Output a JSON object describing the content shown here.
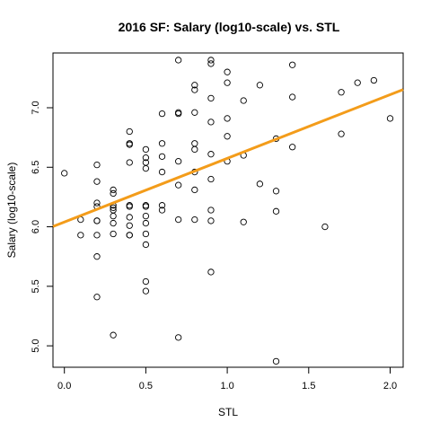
{
  "chart_data": {
    "type": "scatter",
    "title": "2016 SF: Salary (log10-scale) vs. STL",
    "xlabel": "STL",
    "ylabel": "Salary (log10-scale)",
    "xlim": [
      -0.07,
      2.08
    ],
    "ylim": [
      4.82,
      7.46
    ],
    "xticks": [
      0.0,
      0.5,
      1.0,
      1.5,
      2.0
    ],
    "xtick_labels": [
      "0.0",
      "0.5",
      "1.0",
      "1.5",
      "2.0"
    ],
    "yticks": [
      5.0,
      5.5,
      6.0,
      6.5,
      7.0
    ],
    "ytick_labels": [
      "5.0",
      "5.5",
      "6.0",
      "6.5",
      "7.0"
    ],
    "grid": false,
    "point_color": "#000000",
    "points": [
      [
        0.0,
        6.45
      ],
      [
        0.1,
        6.06
      ],
      [
        0.1,
        5.93
      ],
      [
        0.2,
        6.52
      ],
      [
        0.2,
        6.38
      ],
      [
        0.2,
        6.2
      ],
      [
        0.2,
        6.17
      ],
      [
        0.2,
        6.05
      ],
      [
        0.2,
        6.05
      ],
      [
        0.2,
        5.93
      ],
      [
        0.2,
        5.75
      ],
      [
        0.2,
        5.41
      ],
      [
        0.3,
        6.31
      ],
      [
        0.3,
        6.28
      ],
      [
        0.3,
        6.18
      ],
      [
        0.3,
        6.16
      ],
      [
        0.3,
        6.14
      ],
      [
        0.3,
        6.09
      ],
      [
        0.3,
        6.03
      ],
      [
        0.3,
        5.94
      ],
      [
        0.3,
        5.09
      ],
      [
        0.4,
        6.8
      ],
      [
        0.4,
        6.7
      ],
      [
        0.4,
        6.69
      ],
      [
        0.4,
        6.54
      ],
      [
        0.4,
        6.18
      ],
      [
        0.4,
        6.17
      ],
      [
        0.4,
        6.08
      ],
      [
        0.4,
        6.01
      ],
      [
        0.4,
        5.93
      ],
      [
        0.4,
        5.93
      ],
      [
        0.5,
        6.65
      ],
      [
        0.5,
        6.58
      ],
      [
        0.5,
        6.54
      ],
      [
        0.5,
        6.49
      ],
      [
        0.5,
        6.18
      ],
      [
        0.5,
        6.17
      ],
      [
        0.5,
        6.09
      ],
      [
        0.5,
        6.03
      ],
      [
        0.5,
        5.94
      ],
      [
        0.5,
        5.85
      ],
      [
        0.5,
        5.54
      ],
      [
        0.5,
        5.46
      ],
      [
        0.6,
        6.95
      ],
      [
        0.6,
        6.7
      ],
      [
        0.6,
        6.59
      ],
      [
        0.6,
        6.46
      ],
      [
        0.6,
        6.18
      ],
      [
        0.6,
        6.14
      ],
      [
        0.7,
        7.4
      ],
      [
        0.7,
        6.96
      ],
      [
        0.7,
        6.95
      ],
      [
        0.7,
        6.55
      ],
      [
        0.7,
        6.35
      ],
      [
        0.7,
        6.06
      ],
      [
        0.7,
        5.07
      ],
      [
        0.8,
        7.19
      ],
      [
        0.8,
        7.15
      ],
      [
        0.8,
        6.96
      ],
      [
        0.8,
        6.7
      ],
      [
        0.8,
        6.65
      ],
      [
        0.8,
        6.46
      ],
      [
        0.8,
        6.31
      ],
      [
        0.8,
        6.06
      ],
      [
        0.9,
        7.4
      ],
      [
        0.9,
        7.37
      ],
      [
        0.9,
        7.08
      ],
      [
        0.9,
        6.88
      ],
      [
        0.9,
        6.61
      ],
      [
        0.9,
        6.4
      ],
      [
        0.9,
        6.14
      ],
      [
        0.9,
        6.05
      ],
      [
        0.9,
        5.62
      ],
      [
        1.0,
        7.3
      ],
      [
        1.0,
        7.21
      ],
      [
        1.0,
        6.91
      ],
      [
        1.0,
        6.76
      ],
      [
        1.0,
        6.55
      ],
      [
        1.1,
        7.06
      ],
      [
        1.1,
        6.6
      ],
      [
        1.1,
        6.04
      ],
      [
        1.2,
        7.19
      ],
      [
        1.2,
        6.36
      ],
      [
        1.3,
        6.74
      ],
      [
        1.3,
        6.3
      ],
      [
        1.3,
        6.13
      ],
      [
        1.3,
        4.87
      ],
      [
        1.4,
        7.36
      ],
      [
        1.4,
        7.09
      ],
      [
        1.4,
        6.67
      ],
      [
        1.6,
        6.0
      ],
      [
        1.7,
        7.13
      ],
      [
        1.7,
        6.78
      ],
      [
        1.8,
        7.21
      ],
      [
        1.9,
        7.23
      ],
      [
        2.0,
        6.91
      ]
    ],
    "fit_line": {
      "intercept": 6.04,
      "slope": 0.535,
      "color": "#f39c1a"
    }
  }
}
